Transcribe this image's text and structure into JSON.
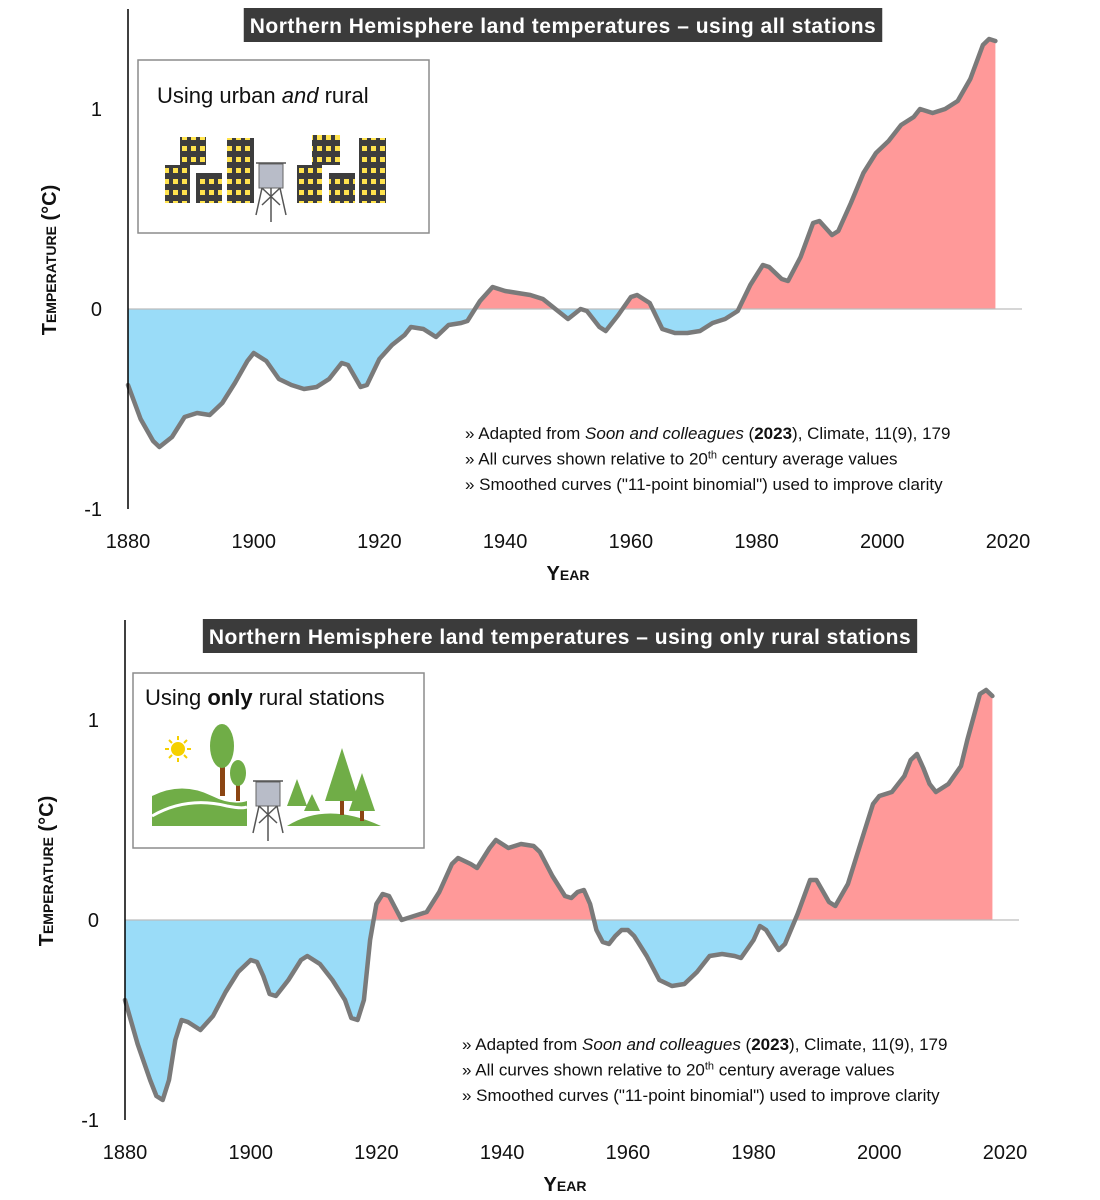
{
  "chart_data": [
    {
      "type": "area",
      "title": "Northern Hemisphere land temperatures – using all stations",
      "inset_label": [
        {
          "text": "Using urban "
        },
        {
          "text": "and",
          "italic": true
        },
        {
          "text": " rural"
        }
      ],
      "notes": [
        [
          {
            "text": "» Adapted from "
          },
          {
            "text": "Soon and colleagues",
            "italic": true
          },
          {
            "text": " ("
          },
          {
            "text": "2023",
            "bold": true
          },
          {
            "text": "), Climate, 11(9), 179"
          }
        ],
        [
          {
            "text": "» All curves shown relative to 20"
          },
          {
            "text": "th",
            "sup": true
          },
          {
            "text": " century average values"
          }
        ],
        [
          {
            "text": "» Smoothed curves (\"11-point binomial\") used to improve clarity"
          }
        ]
      ],
      "x_label": "Year",
      "y_label": "Temperature (°C)",
      "x": [
        1880,
        1882,
        1884,
        1885,
        1887,
        1889,
        1891,
        1893,
        1895,
        1897,
        1899,
        1900,
        1902,
        1904,
        1906,
        1908,
        1910,
        1912,
        1914,
        1915,
        1917,
        1918,
        1920,
        1922,
        1924,
        1925,
        1927,
        1929,
        1931,
        1933,
        1934,
        1936,
        1938,
        1940,
        1942,
        1944,
        1946,
        1948,
        1950,
        1952,
        1953,
        1955,
        1956,
        1958,
        1960,
        1961,
        1963,
        1965,
        1967,
        1969,
        1971,
        1973,
        1975,
        1977,
        1979,
        1981,
        1982,
        1984,
        1985,
        1987,
        1989,
        1990,
        1992,
        1993,
        1995,
        1997,
        1999,
        2001,
        2003,
        2005,
        2006,
        2008,
        2010,
        2012,
        2014,
        2016,
        2017,
        2018
      ],
      "values": [
        -0.38,
        -0.55,
        -0.66,
        -0.69,
        -0.64,
        -0.54,
        -0.52,
        -0.53,
        -0.47,
        -0.37,
        -0.26,
        -0.22,
        -0.26,
        -0.35,
        -0.38,
        -0.4,
        -0.39,
        -0.35,
        -0.27,
        -0.28,
        -0.39,
        -0.38,
        -0.25,
        -0.18,
        -0.13,
        -0.09,
        -0.1,
        -0.14,
        -0.08,
        -0.07,
        -0.06,
        0.04,
        0.11,
        0.09,
        0.08,
        0.07,
        0.05,
        0.0,
        -0.05,
        0.0,
        -0.01,
        -0.09,
        -0.11,
        -0.03,
        0.06,
        0.07,
        0.03,
        -0.1,
        -0.12,
        -0.12,
        -0.11,
        -0.07,
        -0.05,
        -0.01,
        0.12,
        0.22,
        0.21,
        0.15,
        0.14,
        0.26,
        0.43,
        0.44,
        0.37,
        0.39,
        0.53,
        0.68,
        0.78,
        0.84,
        0.92,
        0.96,
        1,
        0.98,
        1,
        1.04,
        1.15,
        1.32,
        1.35,
        1.34
      ],
      "xlim": [
        1880,
        2020
      ],
      "ylim": [
        -1,
        1.5
      ],
      "xticks": [
        1880,
        1900,
        1920,
        1940,
        1960,
        1980,
        2000,
        2020
      ],
      "yticks": [
        -1,
        0,
        1
      ],
      "positive_color": "#ff9999",
      "negative_color": "#9adcf8",
      "line_color": "#7a7a7a"
    },
    {
      "type": "area",
      "title": "Northern Hemisphere land temperatures – using only rural stations",
      "inset_label": [
        {
          "text": "Using "
        },
        {
          "text": "only",
          "bold": true
        },
        {
          "text": " rural stations"
        }
      ],
      "notes": [
        [
          {
            "text": "» Adapted from "
          },
          {
            "text": "Soon and colleagues",
            "italic": true
          },
          {
            "text": " ("
          },
          {
            "text": "2023",
            "bold": true
          },
          {
            "text": "), Climate, 11(9), 179"
          }
        ],
        [
          {
            "text": "» All curves shown relative to 20"
          },
          {
            "text": "th",
            "sup": true
          },
          {
            "text": " century average values"
          }
        ],
        [
          {
            "text": "» Smoothed curves (\"11-point binomial\") used to improve clarity"
          }
        ]
      ],
      "x_label": "Year",
      "y_label": "Temperature (°C)",
      "x": [
        1880,
        1882,
        1884,
        1885,
        1886,
        1887,
        1888,
        1889,
        1890,
        1892,
        1894,
        1896,
        1898,
        1900,
        1901,
        1902,
        1903,
        1904,
        1906,
        1908,
        1909,
        1911,
        1913,
        1915,
        1916,
        1917,
        1918,
        1919,
        1920,
        1921,
        1922,
        1923,
        1924,
        1926,
        1928,
        1930,
        1932,
        1933,
        1935,
        1936,
        1938,
        1939,
        1941,
        1943,
        1945,
        1946,
        1948,
        1950,
        1951,
        1952,
        1953,
        1954,
        1955,
        1956,
        1957,
        1958,
        1959,
        1960,
        1961,
        1963,
        1965,
        1967,
        1969,
        1971,
        1973,
        1975,
        1977,
        1978,
        1980,
        1981,
        1982,
        1984,
        1985,
        1987,
        1989,
        1990,
        1992,
        1993,
        1995,
        1997,
        1999,
        2000,
        2002,
        2004,
        2005,
        2006,
        2007,
        2008,
        2009,
        2011,
        2013,
        2014,
        2016,
        2017,
        2018
      ],
      "values": [
        -0.4,
        -0.62,
        -0.8,
        -0.88,
        -0.9,
        -0.8,
        -0.6,
        -0.5,
        -0.51,
        -0.55,
        -0.48,
        -0.36,
        -0.26,
        -0.2,
        -0.21,
        -0.28,
        -0.37,
        -0.38,
        -0.3,
        -0.2,
        -0.18,
        -0.22,
        -0.3,
        -0.4,
        -0.49,
        -0.5,
        -0.4,
        -0.1,
        0.08,
        0.13,
        0.12,
        0.06,
        0.0,
        0.02,
        0.04,
        0.14,
        0.28,
        0.31,
        0.28,
        0.26,
        0.36,
        0.4,
        0.36,
        0.38,
        0.37,
        0.34,
        0.22,
        0.12,
        0.11,
        0.14,
        0.15,
        0.08,
        -0.05,
        -0.11,
        -0.12,
        -0.08,
        -0.05,
        -0.05,
        -0.08,
        -0.18,
        -0.3,
        -0.33,
        -0.32,
        -0.26,
        -0.18,
        -0.17,
        -0.18,
        -0.19,
        -0.1,
        -0.03,
        -0.05,
        -0.15,
        -0.12,
        0.03,
        0.2,
        0.2,
        0.09,
        0.07,
        0.18,
        0.38,
        0.58,
        0.62,
        0.64,
        0.72,
        0.8,
        0.83,
        0.76,
        0.68,
        0.64,
        0.68,
        0.77,
        0.9,
        1.13,
        1.15,
        1.12
      ],
      "xlim": [
        1880,
        2020
      ],
      "ylim": [
        -1,
        1.5
      ],
      "xticks": [
        1880,
        1900,
        1920,
        1940,
        1960,
        1980,
        2000,
        2020
      ],
      "yticks": [
        -1,
        0,
        1
      ],
      "positive_color": "#ff9999",
      "negative_color": "#9adcf8",
      "line_color": "#7a7a7a"
    }
  ]
}
